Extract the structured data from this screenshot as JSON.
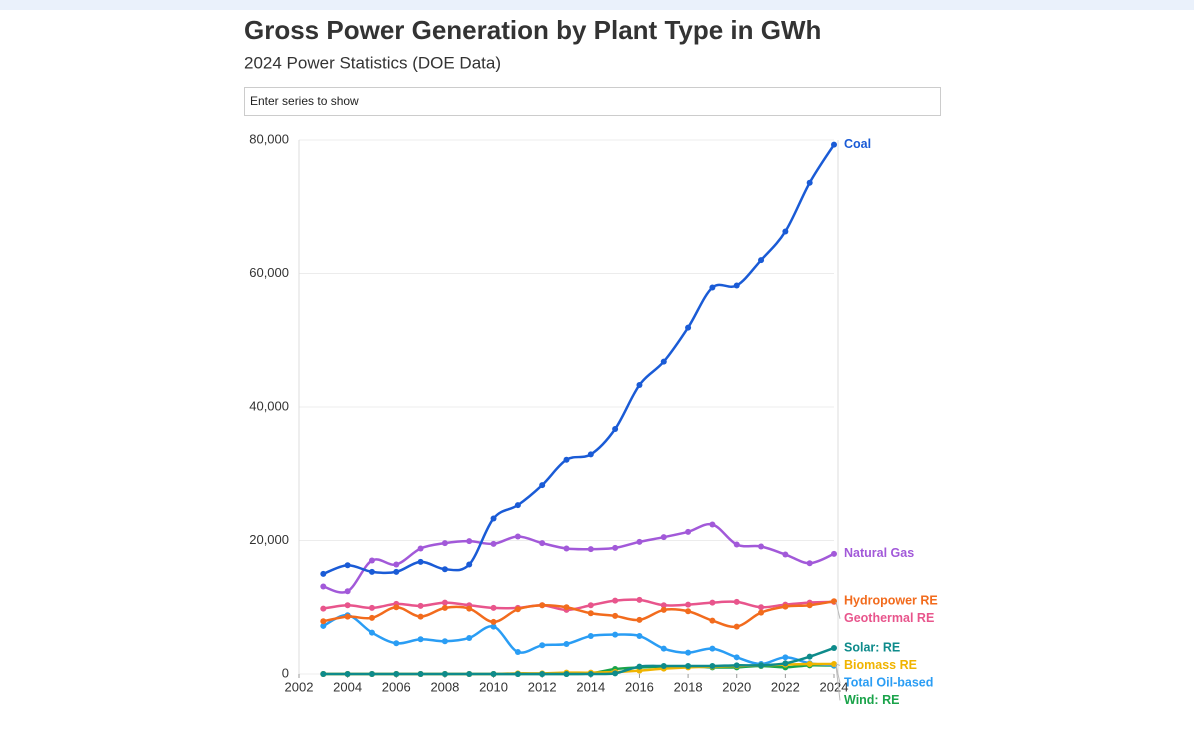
{
  "chart_data": {
    "type": "line",
    "title": "Gross Power Generation by Plant Type in GWh",
    "subtitle": "2024 Power Statistics (DOE Data)",
    "search_placeholder": "Enter series to show",
    "x": [
      2003,
      2004,
      2005,
      2006,
      2007,
      2008,
      2009,
      2010,
      2011,
      2012,
      2013,
      2014,
      2015,
      2016,
      2017,
      2018,
      2019,
      2020,
      2021,
      2022,
      2023,
      2024
    ],
    "xlim": [
      2002,
      2024
    ],
    "xticks": [
      2002,
      2004,
      2006,
      2008,
      2010,
      2012,
      2014,
      2016,
      2018,
      2020,
      2022,
      2024
    ],
    "ylim": [
      0,
      80000
    ],
    "yticks": [
      0,
      {
        "value": 20000,
        "label": "20,000"
      },
      {
        "value": 40000,
        "label": "40,000"
      },
      {
        "value": 60000,
        "label": "60,000"
      },
      {
        "value": 80000,
        "label": "80,000"
      }
    ],
    "grid": true,
    "series": [
      {
        "name": "Coal",
        "color": "#1a5bd6",
        "values": [
          15000,
          16300,
          15300,
          15300,
          16800,
          15700,
          16400,
          23300,
          25300,
          28300,
          32100,
          32900,
          36700,
          43300,
          46800,
          51900,
          57900,
          58200,
          62000,
          66300,
          73600,
          79300
        ]
      },
      {
        "name": "Natural Gas",
        "color": "#a259d9",
        "values": [
          13100,
          12400,
          17000,
          16400,
          18800,
          19600,
          19900,
          19500,
          20600,
          19600,
          18800,
          18700,
          18900,
          19800,
          20500,
          21300,
          22400,
          19400,
          19100,
          17900,
          16600,
          18000
        ]
      },
      {
        "name": "Hydropower RE",
        "color": "#f26b1d",
        "values": [
          7900,
          8600,
          8400,
          10000,
          8600,
          9900,
          9800,
          7800,
          9700,
          10300,
          10000,
          9100,
          8700,
          8100,
          9600,
          9400,
          8000,
          7100,
          9200,
          10100,
          10300,
          10900
        ]
      },
      {
        "name": "Geothermal RE",
        "color": "#e8558c",
        "values": [
          9800,
          10300,
          9900,
          10500,
          10200,
          10700,
          10300,
          9900,
          9900,
          10300,
          9600,
          10300,
          11000,
          11100,
          10300,
          10400,
          10700,
          10800,
          10000,
          10400,
          10700,
          10800
        ]
      },
      {
        "name": "Solar: RE",
        "color": "#0e8b8b",
        "values": [
          0,
          0,
          0,
          0,
          0,
          0,
          0,
          0,
          0,
          0,
          0,
          0,
          100,
          1100,
          1200,
          1200,
          1200,
          1300,
          1300,
          1600,
          2600,
          3900
        ]
      },
      {
        "name": "Biomass RE",
        "color": "#f0b400",
        "values": [
          0,
          0,
          0,
          0,
          0,
          0,
          0,
          0,
          100,
          100,
          200,
          200,
          300,
          500,
          800,
          1000,
          1100,
          1200,
          1300,
          1400,
          1500,
          1500
        ]
      },
      {
        "name": "Total Oil-based",
        "color": "#2a9df4",
        "values": [
          7200,
          8800,
          6200,
          4600,
          5200,
          4900,
          5400,
          7100,
          3300,
          4300,
          4500,
          5700,
          5900,
          5700,
          3800,
          3200,
          3800,
          2500,
          1500,
          2500,
          1600,
          1300
        ]
      },
      {
        "name": "Wind: RE",
        "color": "#1aa34a",
        "values": [
          0,
          0,
          0,
          0,
          0,
          0,
          0,
          0,
          0,
          0,
          0,
          100,
          750,
          980,
          1100,
          1150,
          1000,
          1000,
          1200,
          1000,
          1300,
          1250
        ]
      }
    ]
  }
}
